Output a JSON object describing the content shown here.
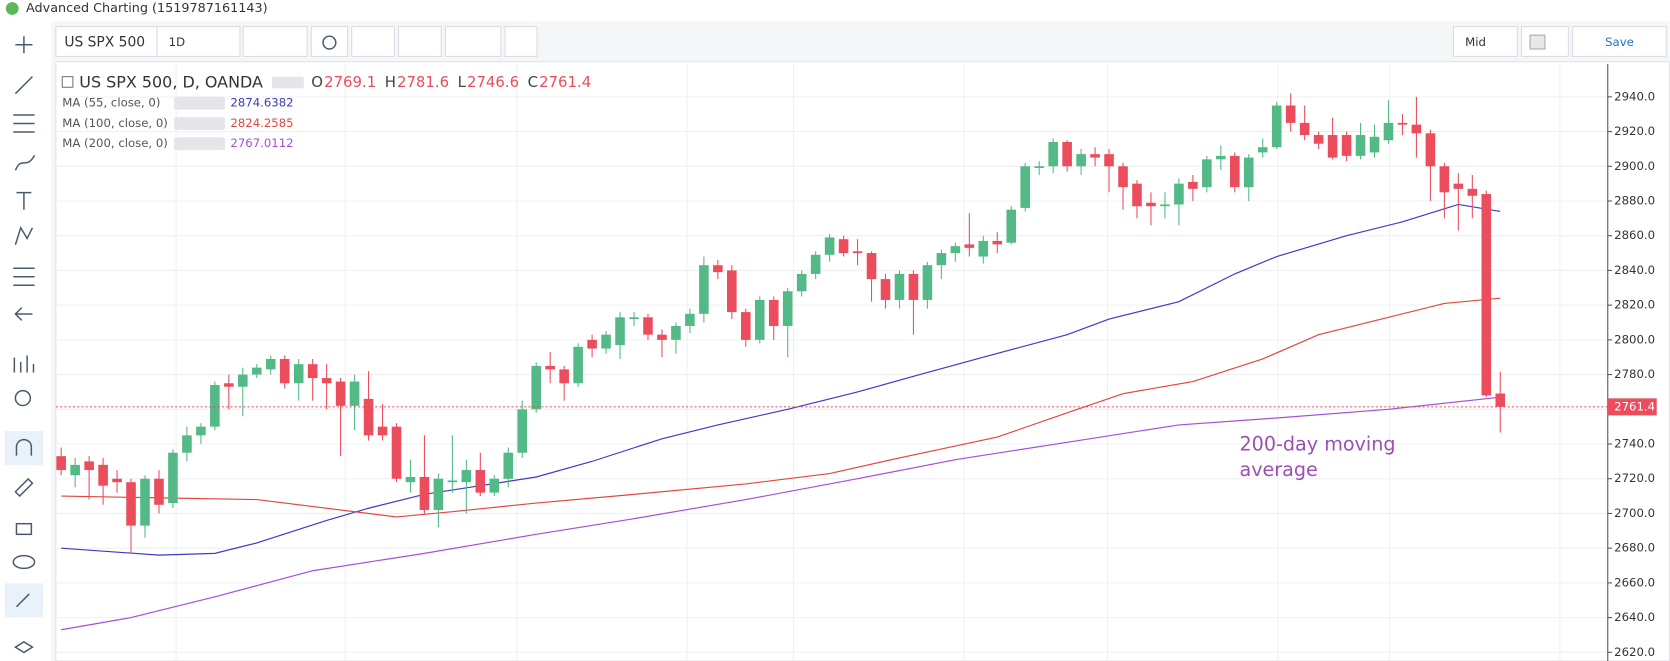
{
  "window_title": "Advanced Charting (1519787161143)",
  "toolbar": {
    "symbol": "US SPX 500",
    "interval": "1D",
    "price_type": "Mid",
    "save": "Save"
  },
  "chart_data": {
    "type": "candlestick",
    "title": "US SPX 500, D, OANDA",
    "ohlc_legend": [
      {
        "label": "O",
        "value": 2769.1
      },
      {
        "label": "H",
        "value": 2781.6
      },
      {
        "label": "L",
        "value": 2746.6
      },
      {
        "label": "C",
        "value": 2761.4
      }
    ],
    "up_color": "#53b987",
    "down_color": "#eb4d5c",
    "open": [
      2733,
      2722,
      2730,
      2728,
      2720,
      2718,
      2693,
      2720,
      2706,
      2735,
      2745,
      2750,
      2775,
      2773,
      2780,
      2783,
      2789,
      2775,
      2786,
      2778,
      2776,
      2762,
      2766,
      2750,
      2750,
      2718,
      2721,
      2702,
      2718,
      2718,
      2725,
      2712,
      2720,
      2735,
      2760,
      2785,
      2783,
      2775,
      2800,
      2795,
      2797,
      2812,
      2813,
      2803,
      2800,
      2808,
      2815,
      2843,
      2840,
      2816,
      2800,
      2823,
      2808,
      2828,
      2838,
      2849,
      2858,
      2851,
      2850,
      2835,
      2823,
      2838,
      2823,
      2843,
      2850,
      2855,
      2848,
      2857,
      2856,
      2876,
      2899,
      2900,
      2914,
      2900,
      2907,
      2907,
      2900,
      2890,
      2879,
      2877,
      2878,
      2891,
      2888,
      2904,
      2906,
      2888,
      2908,
      2911,
      2935,
      2925,
      2918,
      2918,
      2918,
      2906,
      2908,
      2915,
      2925,
      2924,
      2919,
      2900,
      2890,
      2887,
      2884,
      2769.1
    ],
    "high": [
      2738,
      2732,
      2733,
      2732,
      2725,
      2720,
      2722,
      2725,
      2737,
      2750,
      2752,
      2776,
      2780,
      2784,
      2786,
      2791,
      2791,
      2789,
      2789,
      2786,
      2778,
      2780,
      2782,
      2763,
      2752,
      2731,
      2745,
      2723,
      2745,
      2731,
      2735,
      2722,
      2738,
      2765,
      2787,
      2793,
      2785,
      2798,
      2803,
      2805,
      2816,
      2816,
      2815,
      2806,
      2810,
      2818,
      2848,
      2846,
      2843,
      2818,
      2825,
      2825,
      2830,
      2840,
      2851,
      2861,
      2860,
      2858,
      2851,
      2838,
      2840,
      2840,
      2845,
      2852,
      2856,
      2873,
      2860,
      2862,
      2877,
      2902,
      2903,
      2916,
      2915,
      2910,
      2911,
      2910,
      2902,
      2892,
      2885,
      2885,
      2893,
      2895,
      2906,
      2912,
      2908,
      2907,
      2916,
      2937,
      2942,
      2935,
      2920,
      2928,
      2920,
      2925,
      2924,
      2938,
      2930,
      2940,
      2921,
      2902,
      2896,
      2895,
      2886,
      2781.6
    ],
    "low": [
      2722,
      2715,
      2708,
      2705,
      2712,
      2677,
      2686,
      2700,
      2703,
      2730,
      2740,
      2748,
      2760,
      2756,
      2778,
      2780,
      2772,
      2765,
      2765,
      2760,
      2733,
      2748,
      2742,
      2742,
      2718,
      2712,
      2700,
      2692,
      2712,
      2700,
      2710,
      2710,
      2715,
      2732,
      2758,
      2775,
      2765,
      2773,
      2790,
      2792,
      2789,
      2808,
      2800,
      2790,
      2792,
      2804,
      2810,
      2835,
      2812,
      2796,
      2798,
      2800,
      2790,
      2825,
      2835,
      2845,
      2848,
      2843,
      2822,
      2818,
      2818,
      2803,
      2818,
      2835,
      2845,
      2848,
      2844,
      2850,
      2855,
      2874,
      2895,
      2896,
      2897,
      2895,
      2900,
      2885,
      2875,
      2870,
      2866,
      2870,
      2866,
      2880,
      2885,
      2898,
      2885,
      2880,
      2905,
      2910,
      2920,
      2915,
      2910,
      2904,
      2903,
      2904,
      2905,
      2913,
      2918,
      2905,
      2880,
      2870,
      2863,
      2870,
      2767,
      2746.6
    ],
    "close": [
      2725,
      2728,
      2725,
      2716,
      2718,
      2693,
      2720,
      2705,
      2735,
      2745,
      2750,
      2774,
      2773,
      2780,
      2784,
      2789,
      2775,
      2786,
      2778,
      2775,
      2762,
      2776,
      2745,
      2745,
      2720,
      2721,
      2702,
      2720,
      2719,
      2725,
      2712,
      2720,
      2735,
      2760,
      2785,
      2783,
      2775,
      2796,
      2795,
      2803,
      2813,
      2813,
      2803,
      2800,
      2808,
      2815,
      2843,
      2839,
      2816,
      2800,
      2823,
      2808,
      2828,
      2838,
      2849,
      2859,
      2850,
      2850,
      2835,
      2823,
      2838,
      2823,
      2843,
      2850,
      2854,
      2853,
      2857,
      2855,
      2875,
      2900,
      2900,
      2914,
      2900,
      2907,
      2905,
      2900,
      2888,
      2877,
      2877,
      2878,
      2890,
      2887,
      2904,
      2906,
      2888,
      2905,
      2911,
      2935,
      2925,
      2918,
      2913,
      2905,
      2906,
      2918,
      2917,
      2925,
      2924,
      2919,
      2900,
      2885,
      2887,
      2883,
      2768,
      2761.4
    ],
    "series": [
      {
        "name": "MA (55, close, 0)",
        "value": 2874.6382,
        "color": "#3b3bc4",
        "x": [
          0,
          7,
          11,
          14,
          19,
          22,
          26,
          30,
          34,
          38,
          43,
          47,
          52,
          57,
          61,
          66,
          72,
          75,
          80,
          84,
          87,
          92,
          96,
          100,
          103
        ],
        "values": [
          2680,
          2676,
          2677,
          2683,
          2696,
          2703,
          2711,
          2716,
          2721,
          2730,
          2743,
          2751,
          2760,
          2770,
          2779,
          2790,
          2803,
          2812,
          2822,
          2838,
          2848,
          2860,
          2868,
          2878,
          2874
        ]
      },
      {
        "name": "MA (100, close, 0)",
        "value": 2824.2585,
        "color": "#e2473f",
        "x": [
          0,
          14,
          24,
          28,
          34,
          41,
          49,
          55,
          60,
          67,
          72,
          76,
          81,
          86,
          90,
          95,
          99,
          103
        ],
        "values": [
          2710,
          2708,
          2698,
          2701,
          2706,
          2711,
          2717,
          2723,
          2732,
          2744,
          2758,
          2769,
          2776,
          2789,
          2803,
          2813,
          2821,
          2824
        ]
      },
      {
        "name": "MA (200, close, 0)",
        "value": 2767.0112,
        "color": "#a64fd6",
        "x": [
          0,
          5,
          11,
          18,
          26,
          34,
          41,
          49,
          57,
          64,
          72,
          80,
          87,
          95,
          103
        ],
        "values": [
          2633,
          2640,
          2652,
          2667,
          2677,
          2688,
          2697,
          2708,
          2720,
          2731,
          2741,
          2751,
          2755,
          2760,
          2767
        ]
      }
    ],
    "current_price": 2761.4,
    "annotation": [
      "200-day moving",
      "average"
    ],
    "ylim": [
      2615,
      2959
    ],
    "yticks": [
      {
        "value": 2620,
        "label": "2620.0"
      },
      {
        "value": 2640,
        "label": "2640.0"
      },
      {
        "value": 2660,
        "label": "2660.0"
      },
      {
        "value": 2680,
        "label": "2680.0"
      },
      {
        "value": 2700,
        "label": "2700.0"
      },
      {
        "value": 2720,
        "label": "2720.0"
      },
      {
        "value": 2740,
        "label": "2740.0"
      },
      {
        "value": 2760,
        "label": "2760.0"
      },
      {
        "value": 2780,
        "label": "2780.0"
      },
      {
        "value": 2800,
        "label": "2800.0"
      },
      {
        "value": 2820,
        "label": "2820.0"
      },
      {
        "value": 2840,
        "label": "2840.0"
      },
      {
        "value": 2860,
        "label": "2860.0"
      },
      {
        "value": 2880,
        "label": "2880.0"
      },
      {
        "value": 2900,
        "label": "2900.0"
      },
      {
        "value": 2920,
        "label": "2920.0"
      },
      {
        "value": 2940,
        "label": "2940.0"
      }
    ],
    "grid": true
  }
}
